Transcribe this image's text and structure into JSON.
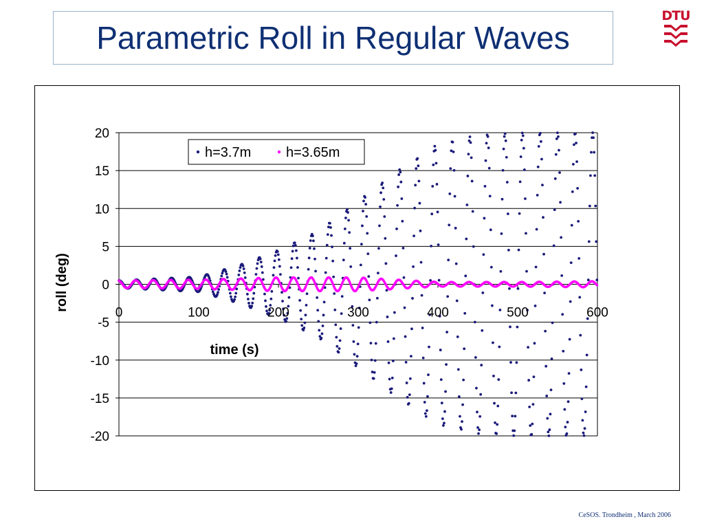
{
  "slide": {
    "title": "Parametric Roll in Regular Waves",
    "logo_text": "DTU",
    "footer": "CeSOS. Trondheim , March 2006"
  },
  "chart_data": {
    "type": "scatter",
    "title": "",
    "xlabel": "time (s)",
    "ylabel": "roll (deg)",
    "xlim": [
      0,
      600
    ],
    "ylim": [
      -20,
      20
    ],
    "x_ticks": [
      "0",
      "100",
      "200",
      "300",
      "400",
      "500",
      "600"
    ],
    "y_ticks": [
      "20",
      "15",
      "10",
      "5",
      "0",
      "-5",
      "-10",
      "-15",
      "-20"
    ],
    "grid": "horizontal",
    "legend_position": "top-center",
    "series": [
      {
        "name": "h=3.7m",
        "color": "#1a1a7a",
        "marker": "dot",
        "description_of_shape": "growing oscillation, period ~22 s",
        "envelope": {
          "t": [
            0,
            100,
            150,
            200,
            250,
            300,
            350,
            400,
            450,
            500,
            550,
            600
          ],
          "amplitude": [
            0.5,
            1.0,
            2.5,
            4.5,
            7.0,
            11.0,
            15.0,
            18.5,
            19.7,
            20.0,
            20.0,
            20.0
          ]
        },
        "period": 22
      },
      {
        "name": "h=3.65m",
        "color": "#ff00ff",
        "marker": "dot",
        "envelope": {
          "t": [
            0,
            100,
            200,
            300,
            400,
            500,
            600
          ],
          "amplitude": [
            0.5,
            0.6,
            0.9,
            0.9,
            0.3,
            0.3,
            0.4
          ]
        },
        "period": 22
      }
    ]
  }
}
